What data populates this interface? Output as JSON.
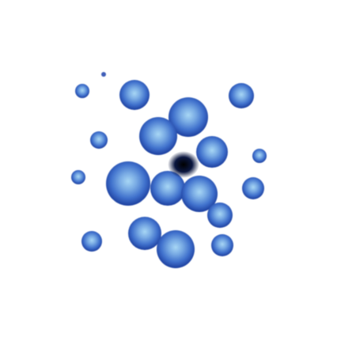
{
  "palette": {
    "background": "#ffffff",
    "outline": "#1f3f9e",
    "body": "#3f70cc",
    "highlight": "#8ec4ee",
    "core": "#050814"
  }
}
